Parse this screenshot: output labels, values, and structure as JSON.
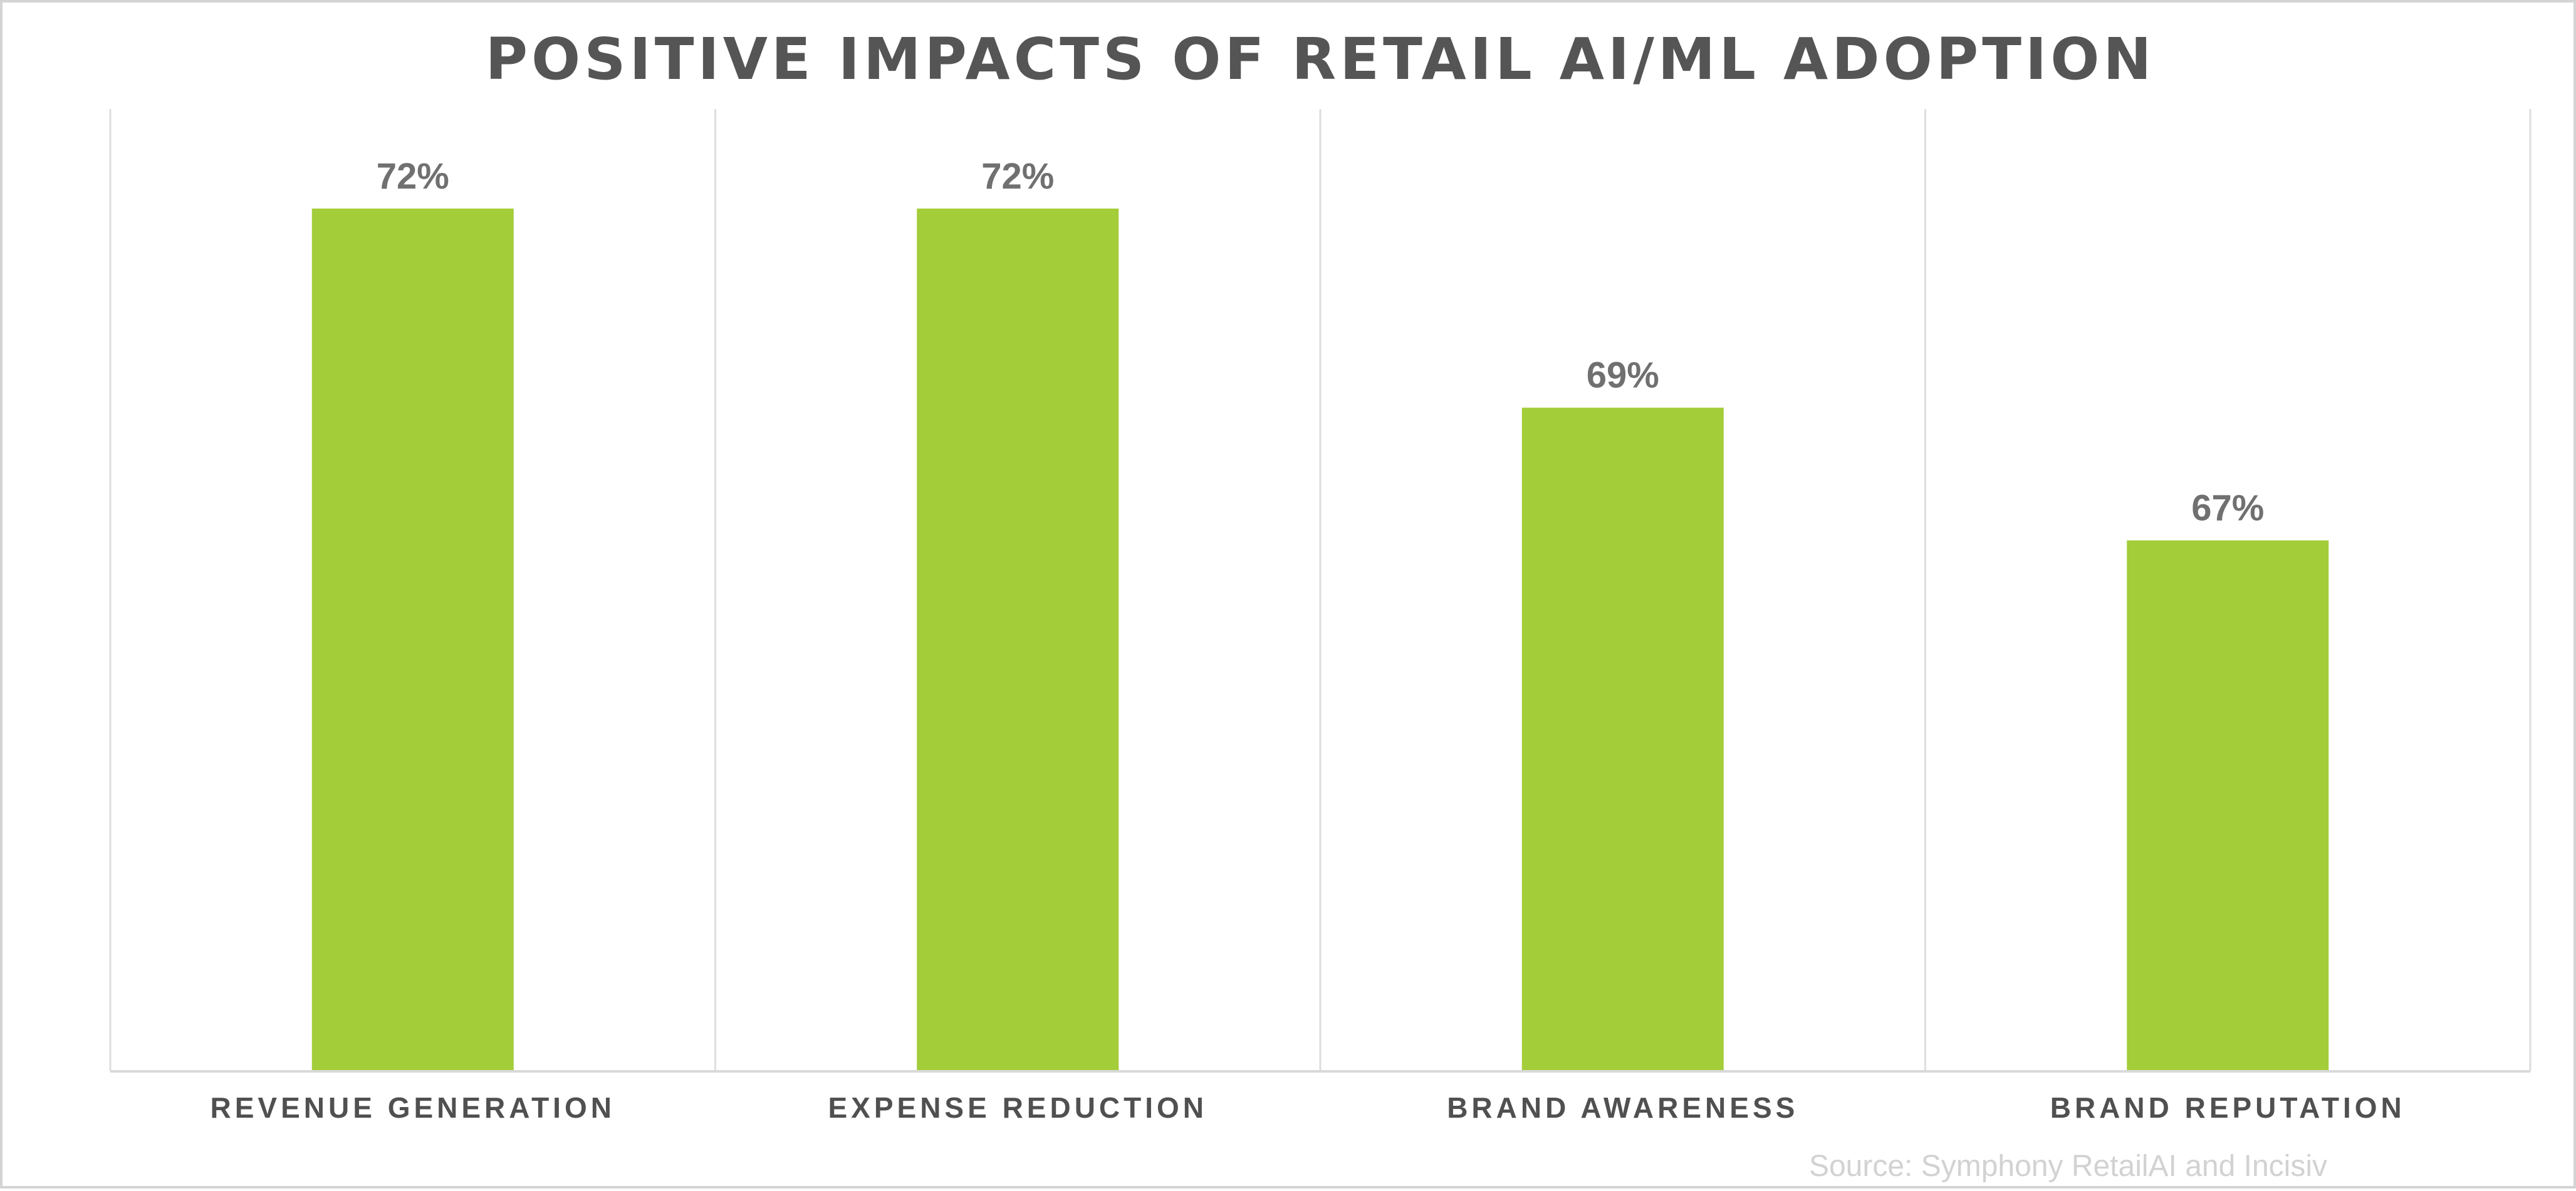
{
  "chart_data": {
    "type": "bar",
    "title": "POSITIVE IMPACTS OF RETAIL AI/ML ADOPTION",
    "categories": [
      "REVENUE GENERATION",
      "EXPENSE REDUCTION",
      "BRAND AWARENESS",
      "BRAND REPUTATION"
    ],
    "values": [
      72,
      72,
      69,
      67
    ],
    "value_labels": [
      "72%",
      "72%",
      "69%",
      "67%"
    ],
    "ylim": [
      59,
      73.5
    ],
    "xlabel": "",
    "ylabel": "",
    "grid": false,
    "bar_color": "#a3cd39",
    "source": "Source: Symphony RetailAI and Incisiv"
  }
}
